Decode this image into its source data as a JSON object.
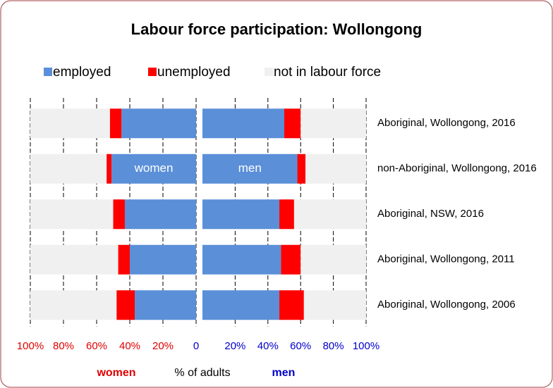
{
  "chart_data": {
    "type": "bar",
    "title": "Labour force participation: Wollongong",
    "categories": [
      "Aboriginal, Wollongong, 2016",
      "non-Aboriginal, Wollongong, 2016",
      "Aboriginal, NSW, 2016",
      "Aboriginal, Wollongong, 2011",
      "Aboriginal, Wollongong, 2006"
    ],
    "series": [
      {
        "name": "employed",
        "color": "#5b8fd8",
        "values": [
          [
            45,
            51,
            43,
            40,
            37
          ],
          [
            50,
            58,
            47,
            48,
            47
          ]
        ]
      },
      {
        "name": "unemployed",
        "color": "#ff0000",
        "values": [
          [
            7,
            3,
            7,
            7,
            11
          ],
          [
            10,
            5,
            9,
            12,
            15
          ]
        ]
      },
      {
        "name": "not in labour force",
        "color": "#f0f0f0",
        "values": [
          [
            48,
            46,
            50,
            53,
            52
          ],
          [
            40,
            37,
            44,
            40,
            38
          ]
        ]
      }
    ],
    "sides": [
      {
        "label": "women",
        "annotation": "women",
        "color": "#e00000",
        "xlim": [
          0,
          100
        ],
        "xticks": [
          {
            "value": 100,
            "label": "100%"
          },
          {
            "value": 80,
            "label": "80%"
          },
          {
            "value": 60,
            "label": "60%"
          },
          {
            "value": 40,
            "label": "40%"
          },
          {
            "value": 20,
            "label": "20%"
          },
          0
        ]
      },
      {
        "label": "men",
        "annotation": "men",
        "color": "#0000cc",
        "xlim": [
          0,
          100
        ],
        "xticks": [
          {
            "value": 20,
            "label": "20%"
          },
          {
            "value": 40,
            "label": "40%"
          },
          {
            "value": 60,
            "label": "60%"
          },
          {
            "value": 80,
            "label": "80%"
          },
          {
            "value": 100,
            "label": "100%"
          }
        ]
      }
    ],
    "xlabel": "% of adults",
    "grid": true
  }
}
